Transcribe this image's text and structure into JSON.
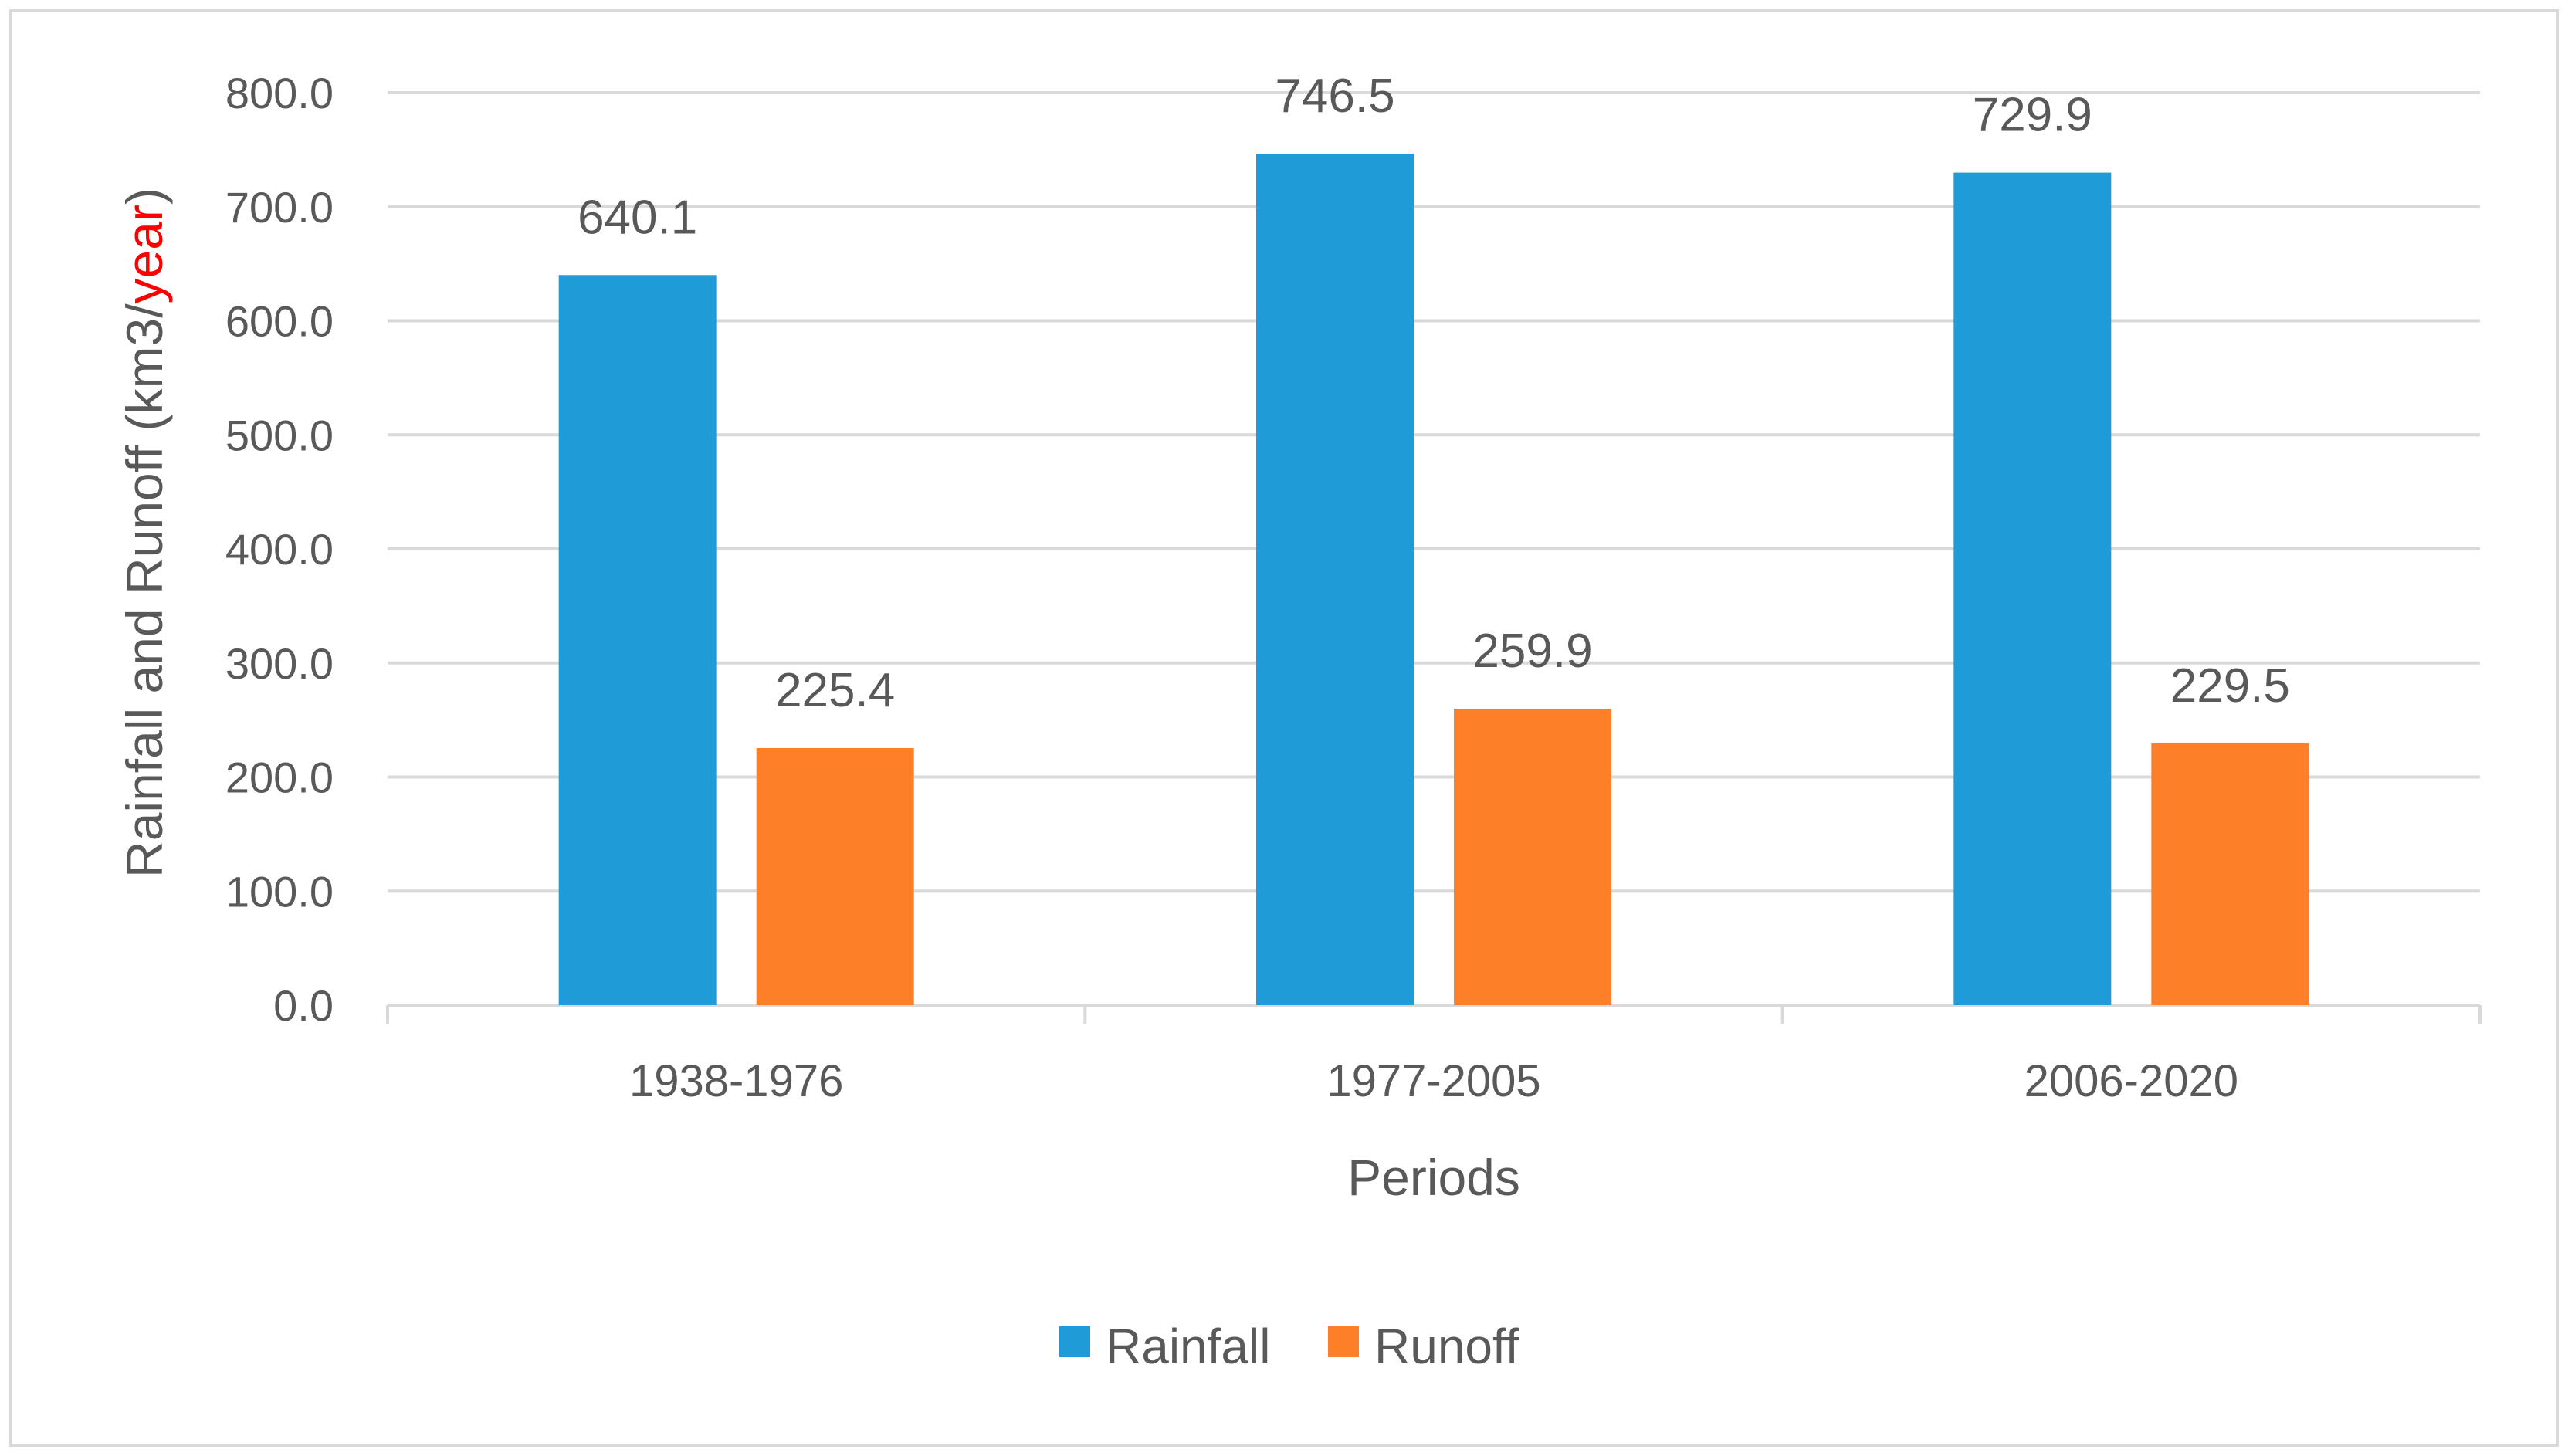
{
  "chart_data": {
    "type": "bar",
    "title": "",
    "xlabel": "Periods",
    "ylabel": {
      "part1": "Rainfall and Runoff (km3/",
      "part2": "year",
      "part3": ")"
    },
    "ylim": [
      0,
      800
    ],
    "ytick_step": 100,
    "ytick_labels": [
      "0.0",
      "100.0",
      "200.0",
      "300.0",
      "400.0",
      "500.0",
      "600.0",
      "700.0",
      "800.0"
    ],
    "categories": [
      "1938-1976",
      "1977-2005",
      "2006-2020"
    ],
    "series": [
      {
        "name": "Rainfall",
        "values": [
          640.1,
          746.5,
          729.9
        ],
        "labels": [
          "640.1",
          "746.5",
          "729.9"
        ],
        "color": "#1f9bd7"
      },
      {
        "name": "Runoff",
        "values": [
          225.4,
          259.9,
          229.5
        ],
        "labels": [
          "225.4",
          "259.9",
          "229.5"
        ],
        "color": "#fd7f27"
      }
    ],
    "ylabel_highlight_color": "#ff0000",
    "grid": true,
    "legend_position": "bottom"
  }
}
